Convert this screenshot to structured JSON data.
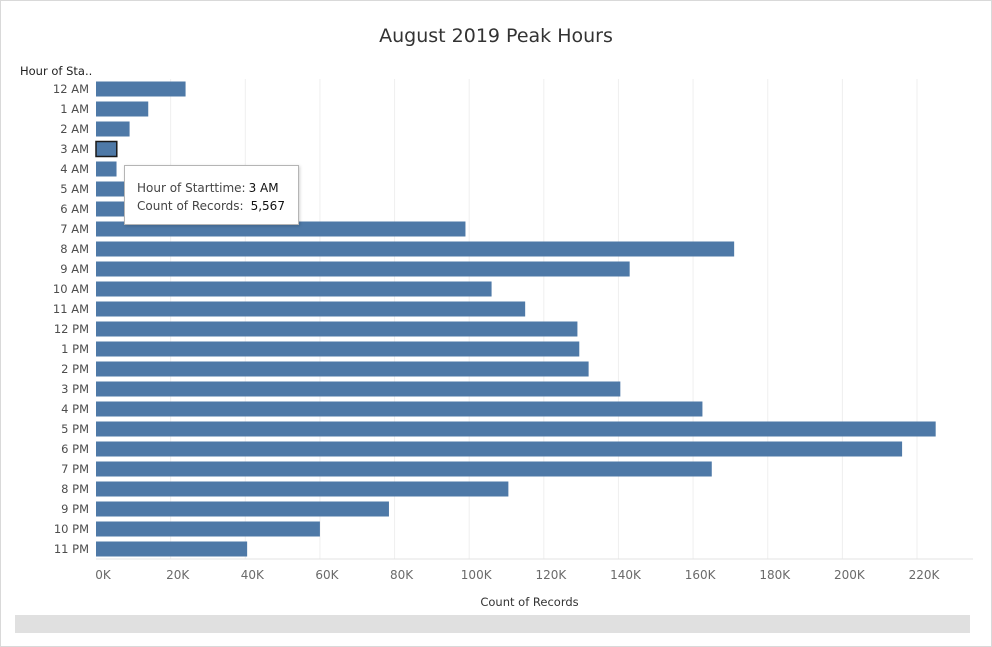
{
  "row_header": "Hour of Sta..",
  "tooltip": {
    "field1_label": "Hour of Starttime:",
    "field1_value": "3 AM",
    "field2_label": "Count of Records:",
    "field2_value": "5,567"
  },
  "colors": {
    "bar": "#4e79a7",
    "bar_highlight_outline": "#1a1a1a",
    "gridline": "#efefef"
  },
  "chart_data": {
    "type": "bar",
    "orientation": "horizontal",
    "title": "August 2019 Peak Hours",
    "xlabel": "Count of Records",
    "ylabel": "",
    "xlim": [
      0,
      235000
    ],
    "x_ticks": [
      0,
      20000,
      40000,
      60000,
      80000,
      100000,
      120000,
      140000,
      160000,
      180000,
      200000,
      220000
    ],
    "x_tick_labels": [
      "0K",
      "20K",
      "40K",
      "60K",
      "80K",
      "100K",
      "120K",
      "140K",
      "160K",
      "180K",
      "200K",
      "220K"
    ],
    "grid": "vertical",
    "highlighted_category": "3 AM",
    "categories": [
      "12 AM",
      "1 AM",
      "2 AM",
      "3 AM",
      "4 AM",
      "5 AM",
      "6 AM",
      "7 AM",
      "8 AM",
      "9 AM",
      "10 AM",
      "11 AM",
      "12 PM",
      "1 PM",
      "2 PM",
      "3 PM",
      "4 PM",
      "5 PM",
      "6 PM",
      "7 PM",
      "8 PM",
      "9 PM",
      "10 PM",
      "11 PM"
    ],
    "values": [
      24000,
      14000,
      9000,
      5567,
      5500,
      7500,
      29000,
      99000,
      171000,
      143000,
      106000,
      115000,
      129000,
      129500,
      132000,
      140500,
      162500,
      225000,
      216000,
      165000,
      110500,
      78500,
      60000,
      40500
    ]
  }
}
